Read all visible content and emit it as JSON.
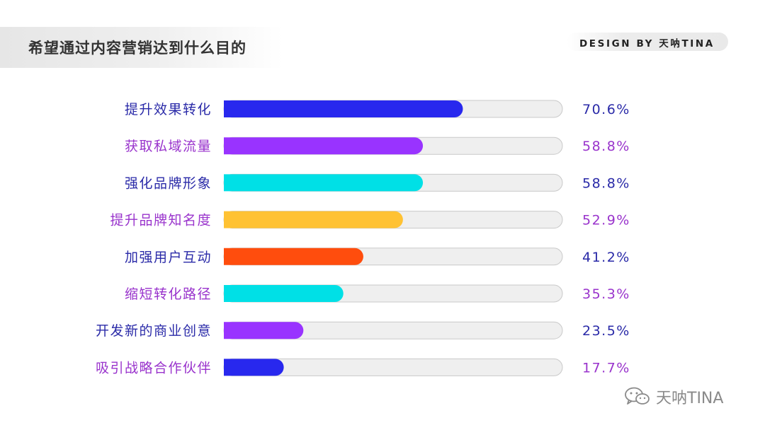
{
  "header": {
    "title": "希望通过内容营销达到什么目的",
    "brand": "DESIGN BY 天呐TINA"
  },
  "watermark": {
    "icon": "wechat-icon",
    "text": "天呐TINA"
  },
  "colors": {
    "blue": "#2828ee",
    "purple": "#9933ff",
    "cyan": "#00e0e6",
    "amber": "#ffc233",
    "orange": "#ff4d0d",
    "label_blue": "#2a2aa8",
    "label_purple": "#9933cc",
    "track": "#efefef",
    "track_border": "#c9c9c9"
  },
  "chart_data": {
    "type": "bar",
    "orientation": "horizontal",
    "xlim": [
      0,
      100
    ],
    "grid": false,
    "legend": "none",
    "categories": [
      "提升效果转化",
      "获取私域流量",
      "强化品牌形象",
      "提升品牌知名度",
      "加强用户互动",
      "缩短转化路径",
      "开发新的商业创意",
      "吸引战略合作伙伴"
    ],
    "values": [
      70.6,
      58.8,
      58.8,
      52.9,
      41.2,
      35.3,
      23.5,
      17.7
    ],
    "value_labels": [
      "70.6%",
      "58.8%",
      "58.8%",
      "52.9%",
      "41.2%",
      "35.3%",
      "23.5%",
      "17.7%"
    ],
    "bar_colors": [
      "#2828ee",
      "#9933ff",
      "#00e0e6",
      "#ffc233",
      "#ff4d0d",
      "#00e0e6",
      "#9933ff",
      "#2828ee"
    ],
    "label_colors": [
      "#2a2aa8",
      "#9933cc",
      "#2a2aa8",
      "#9933cc",
      "#2a2aa8",
      "#9933cc",
      "#2a2aa8",
      "#9933cc"
    ]
  }
}
